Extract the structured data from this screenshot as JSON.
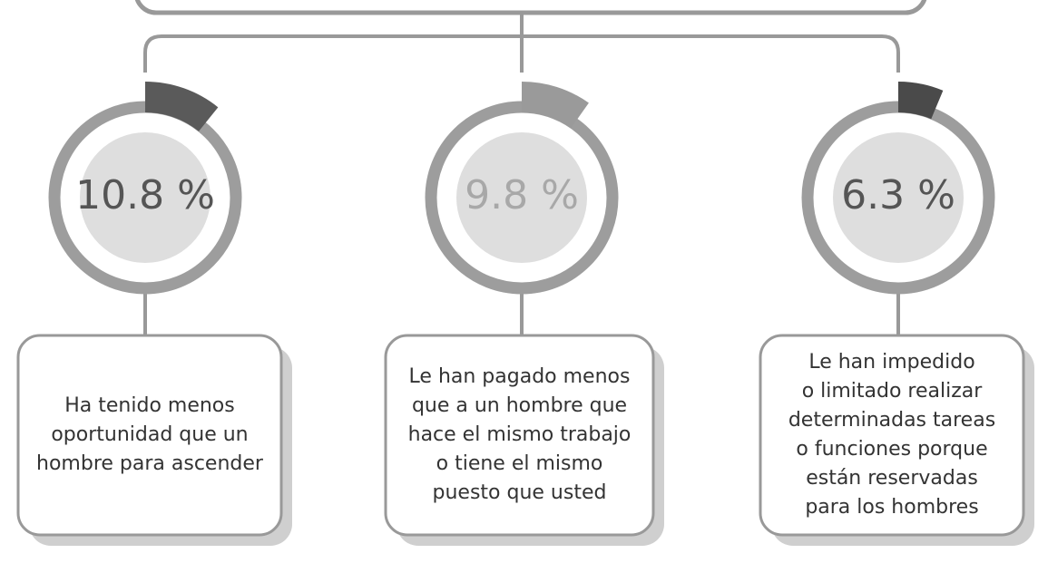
{
  "items": [
    {
      "value": 10.8,
      "value_label": "10.8 %",
      "color": "#5a5a5a",
      "text_color": "#555555",
      "lines": [
        "Ha tenido menos",
        "oportunidad que un",
        "hombre para ascender"
      ]
    },
    {
      "value": 9.8,
      "value_label": "9.8 %",
      "color": "#9a9a9a",
      "text_color": "#a8a8a8",
      "lines": [
        "Le han pagado menos",
        "que a un hombre que",
        "hace el mismo trabajo",
        "o tiene el mismo",
        "puesto que usted"
      ]
    },
    {
      "value": 6.3,
      "value_label": "6.3 %",
      "color": "#4a4a4a",
      "text_color": "#555555",
      "lines": [
        "Le han impedido",
        "o limitado realizar",
        "determinadas tareas",
        "o funciones porque",
        "están reservadas",
        "para los hombres"
      ]
    }
  ]
}
